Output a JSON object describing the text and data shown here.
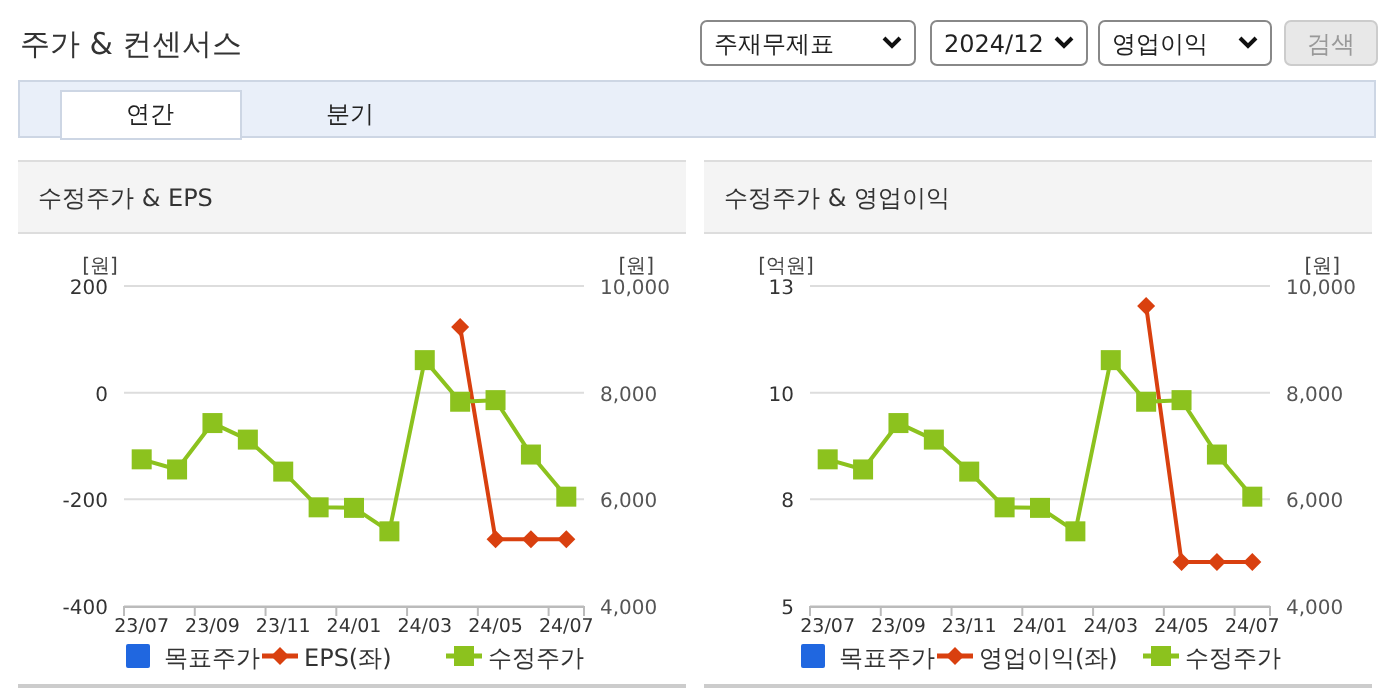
{
  "chart_data": [
    {
      "type": "other",
      "title": "주가 & 컨센서스",
      "annotations": [
        "주재무제표",
        "2024/12",
        "영업이익",
        "검색",
        "연간",
        "분기"
      ]
    },
    {
      "type": "line",
      "title": "수정주가 & EPS",
      "ylabel": "[원]",
      "y2label": "[원]",
      "categories": [
        "23/07",
        null,
        "23/09",
        null,
        "23/11",
        null,
        "24/01",
        null,
        "24/03",
        null,
        "24/05",
        null,
        "24/07"
      ],
      "ylim": [
        -400,
        200
      ],
      "yticks": [
        -400,
        -200,
        0,
        200
      ],
      "y2lim": [
        4000,
        10000
      ],
      "y2ticks": [
        {
          "value": 4000,
          "label": "4,000"
        },
        {
          "value": 6000,
          "label": "6,000"
        },
        {
          "value": 8000,
          "label": "8,000"
        },
        {
          "value": 10000,
          "label": "10,000"
        }
      ],
      "grid": "y",
      "legend": "bottom",
      "series": [
        {
          "name": "목표주가",
          "type": "bar",
          "color": "#2067e0",
          "values": [
            null,
            null,
            null,
            null,
            null,
            null,
            null,
            null,
            null,
            null,
            null,
            null,
            null
          ]
        },
        {
          "name": "EPS(좌)",
          "color": "#d9400f",
          "marker": "diamond",
          "values": [
            null,
            null,
            null,
            null,
            null,
            null,
            null,
            null,
            null,
            123,
            -275,
            -275,
            -275
          ]
        },
        {
          "name": "수정주가",
          "color": "#8cc21e",
          "marker": "square",
          "axis": "y2",
          "values": [
            6750,
            6560,
            7430,
            7120,
            6520,
            5850,
            5840,
            5400,
            8610,
            7830,
            7860,
            6840,
            6050
          ]
        }
      ]
    },
    {
      "type": "line",
      "title": "수정주가 & 영업이익",
      "ylabel": "[억원]",
      "y2label": "[원]",
      "categories": [
        "23/07",
        null,
        "23/09",
        null,
        "23/11",
        null,
        "24/01",
        null,
        "24/03",
        null,
        "24/05",
        null,
        "24/07"
      ],
      "ylim": [
        5,
        13
      ],
      "yticks": [
        5,
        {
          "value": 7.667,
          "label": "8"
        },
        {
          "value": 10.333,
          "label": "10"
        },
        13
      ],
      "y2lim": [
        4000,
        10000
      ],
      "y2ticks": [
        {
          "value": 4000,
          "label": "4,000"
        },
        {
          "value": 6000,
          "label": "6,000"
        },
        {
          "value": 8000,
          "label": "8,000"
        },
        {
          "value": 10000,
          "label": "10,000"
        }
      ],
      "grid": "y",
      "legend": "bottom",
      "series": [
        {
          "name": "목표주가",
          "type": "bar",
          "color": "#2067e0",
          "values": [
            null,
            null,
            null,
            null,
            null,
            null,
            null,
            null,
            null,
            null,
            null,
            null,
            null
          ]
        },
        {
          "name": "영업이익(좌)",
          "color": "#d9400f",
          "marker": "diamond",
          "values": [
            null,
            null,
            null,
            null,
            null,
            null,
            null,
            null,
            null,
            12.5,
            6.1,
            6.1,
            6.1
          ]
        },
        {
          "name": "수정주가",
          "color": "#8cc21e",
          "marker": "square",
          "axis": "y2",
          "values": [
            6750,
            6560,
            7430,
            7120,
            6520,
            5850,
            5840,
            5400,
            8610,
            7830,
            7860,
            6840,
            6050
          ]
        }
      ]
    }
  ]
}
